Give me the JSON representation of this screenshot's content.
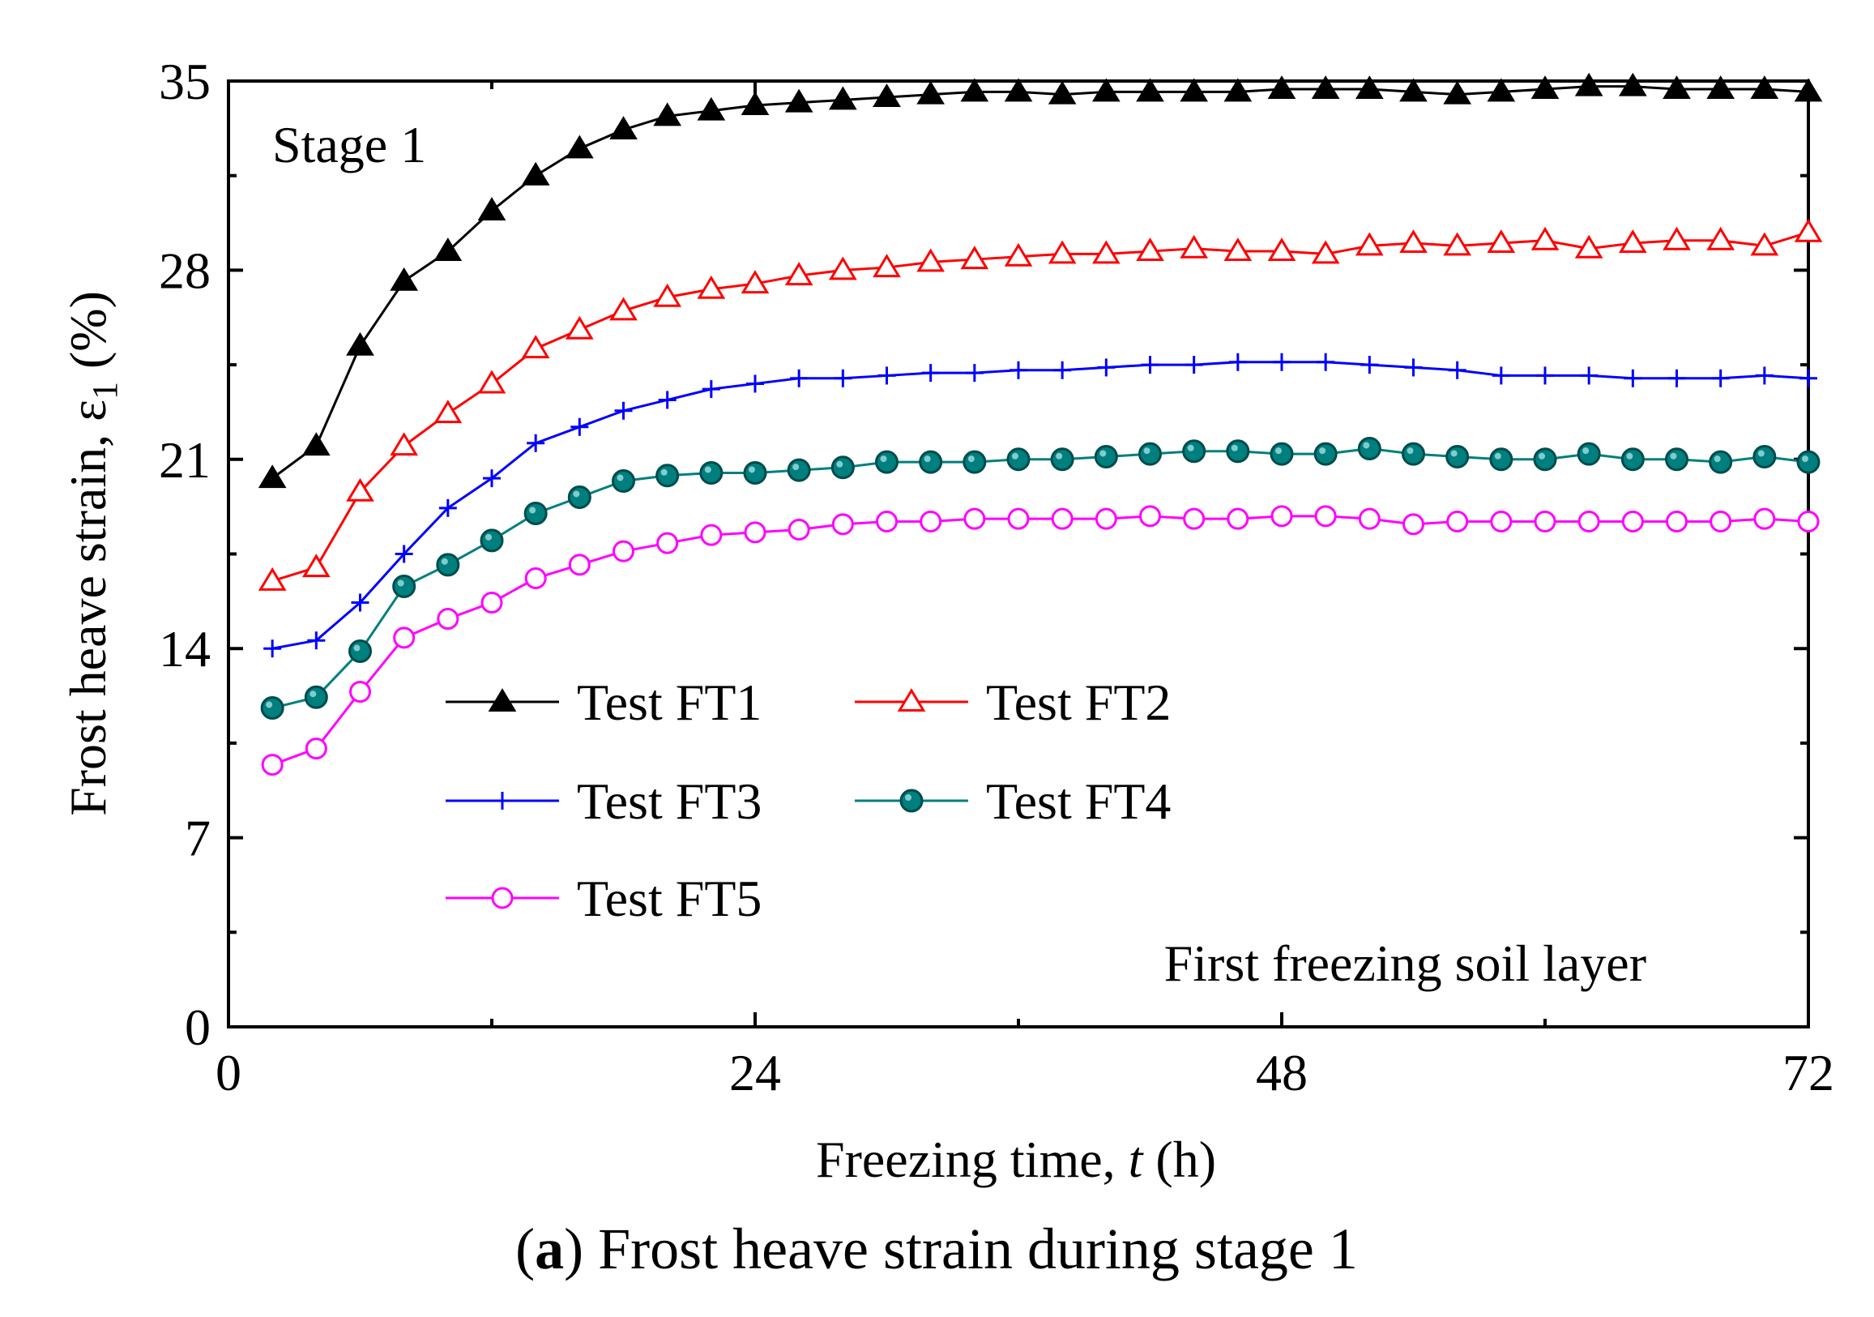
{
  "chart_data": {
    "type": "line",
    "title": "",
    "caption": {
      "letter": "a",
      "text": "Frost heave strain during stage 1"
    },
    "xlabel": {
      "main": "Freezing time, ",
      "var": "t",
      "unit": " (h)"
    },
    "ylabel": {
      "main": "Frost heave strain, ε",
      "sub": "1",
      "unit": " (%)"
    },
    "xlim": [
      0,
      72
    ],
    "ylim": [
      0,
      35
    ],
    "xticks": [
      0,
      24,
      48,
      72
    ],
    "yticks": [
      0,
      7,
      14,
      21,
      28,
      35
    ],
    "annotations": {
      "stage": "Stage 1",
      "layer": "First freezing soil layer"
    },
    "x": [
      2,
      4,
      6,
      8,
      10,
      12,
      14,
      16,
      18,
      20,
      22,
      24,
      26,
      28,
      30,
      32,
      34,
      36,
      38,
      40,
      42,
      44,
      46,
      48,
      50,
      52,
      54,
      56,
      58,
      60,
      62,
      64,
      66,
      68,
      70,
      72
    ],
    "series": [
      {
        "name": "Test FT1",
        "color": "#000000",
        "marker": "triangle-filled",
        "values": [
          20.3,
          21.5,
          25.2,
          27.6,
          28.7,
          30.2,
          31.5,
          32.5,
          33.2,
          33.7,
          33.9,
          34.1,
          34.2,
          34.3,
          34.4,
          34.5,
          34.6,
          34.6,
          34.5,
          34.6,
          34.6,
          34.6,
          34.6,
          34.7,
          34.7,
          34.7,
          34.6,
          34.5,
          34.6,
          34.7,
          34.8,
          34.8,
          34.7,
          34.7,
          34.7,
          34.6
        ]
      },
      {
        "name": "Test FT2",
        "color": "#ff0000",
        "marker": "triangle-open",
        "values": [
          16.5,
          17.0,
          19.8,
          21.5,
          22.7,
          23.8,
          25.1,
          25.8,
          26.5,
          27.0,
          27.3,
          27.5,
          27.8,
          28.0,
          28.1,
          28.3,
          28.4,
          28.5,
          28.6,
          28.6,
          28.7,
          28.8,
          28.7,
          28.7,
          28.6,
          28.9,
          29.0,
          28.9,
          29.0,
          29.1,
          28.8,
          29.0,
          29.1,
          29.1,
          28.9,
          29.4
        ]
      },
      {
        "name": "Test FT3",
        "color": "#0000ff",
        "marker": "plus",
        "values": [
          14.0,
          14.3,
          15.7,
          17.5,
          19.2,
          20.3,
          21.6,
          22.2,
          22.8,
          23.2,
          23.6,
          23.8,
          24.0,
          24.0,
          24.1,
          24.2,
          24.2,
          24.3,
          24.3,
          24.4,
          24.5,
          24.5,
          24.6,
          24.6,
          24.6,
          24.5,
          24.4,
          24.3,
          24.1,
          24.1,
          24.1,
          24.0,
          24.0,
          24.0,
          24.1,
          24.0
        ]
      },
      {
        "name": "Test FT4",
        "color": "#007f7f",
        "marker": "circle-filled",
        "values": [
          11.8,
          12.2,
          13.9,
          16.3,
          17.1,
          18.0,
          19.0,
          19.6,
          20.2,
          20.4,
          20.5,
          20.5,
          20.6,
          20.7,
          20.9,
          20.9,
          20.9,
          21.0,
          21.0,
          21.1,
          21.2,
          21.3,
          21.3,
          21.2,
          21.2,
          21.4,
          21.2,
          21.1,
          21.0,
          21.0,
          21.2,
          21.0,
          21.0,
          20.9,
          21.1,
          20.9
        ]
      },
      {
        "name": "Test FT5",
        "color": "#ff00ff",
        "marker": "circle-open",
        "values": [
          9.7,
          10.3,
          12.4,
          14.4,
          15.1,
          15.7,
          16.6,
          17.1,
          17.6,
          17.9,
          18.2,
          18.3,
          18.4,
          18.6,
          18.7,
          18.7,
          18.8,
          18.8,
          18.8,
          18.8,
          18.9,
          18.8,
          18.8,
          18.9,
          18.9,
          18.8,
          18.6,
          18.7,
          18.7,
          18.7,
          18.7,
          18.7,
          18.7,
          18.7,
          18.8,
          18.7
        ]
      }
    ],
    "legend": {
      "placement": "lower-left",
      "columns": 2
    }
  }
}
